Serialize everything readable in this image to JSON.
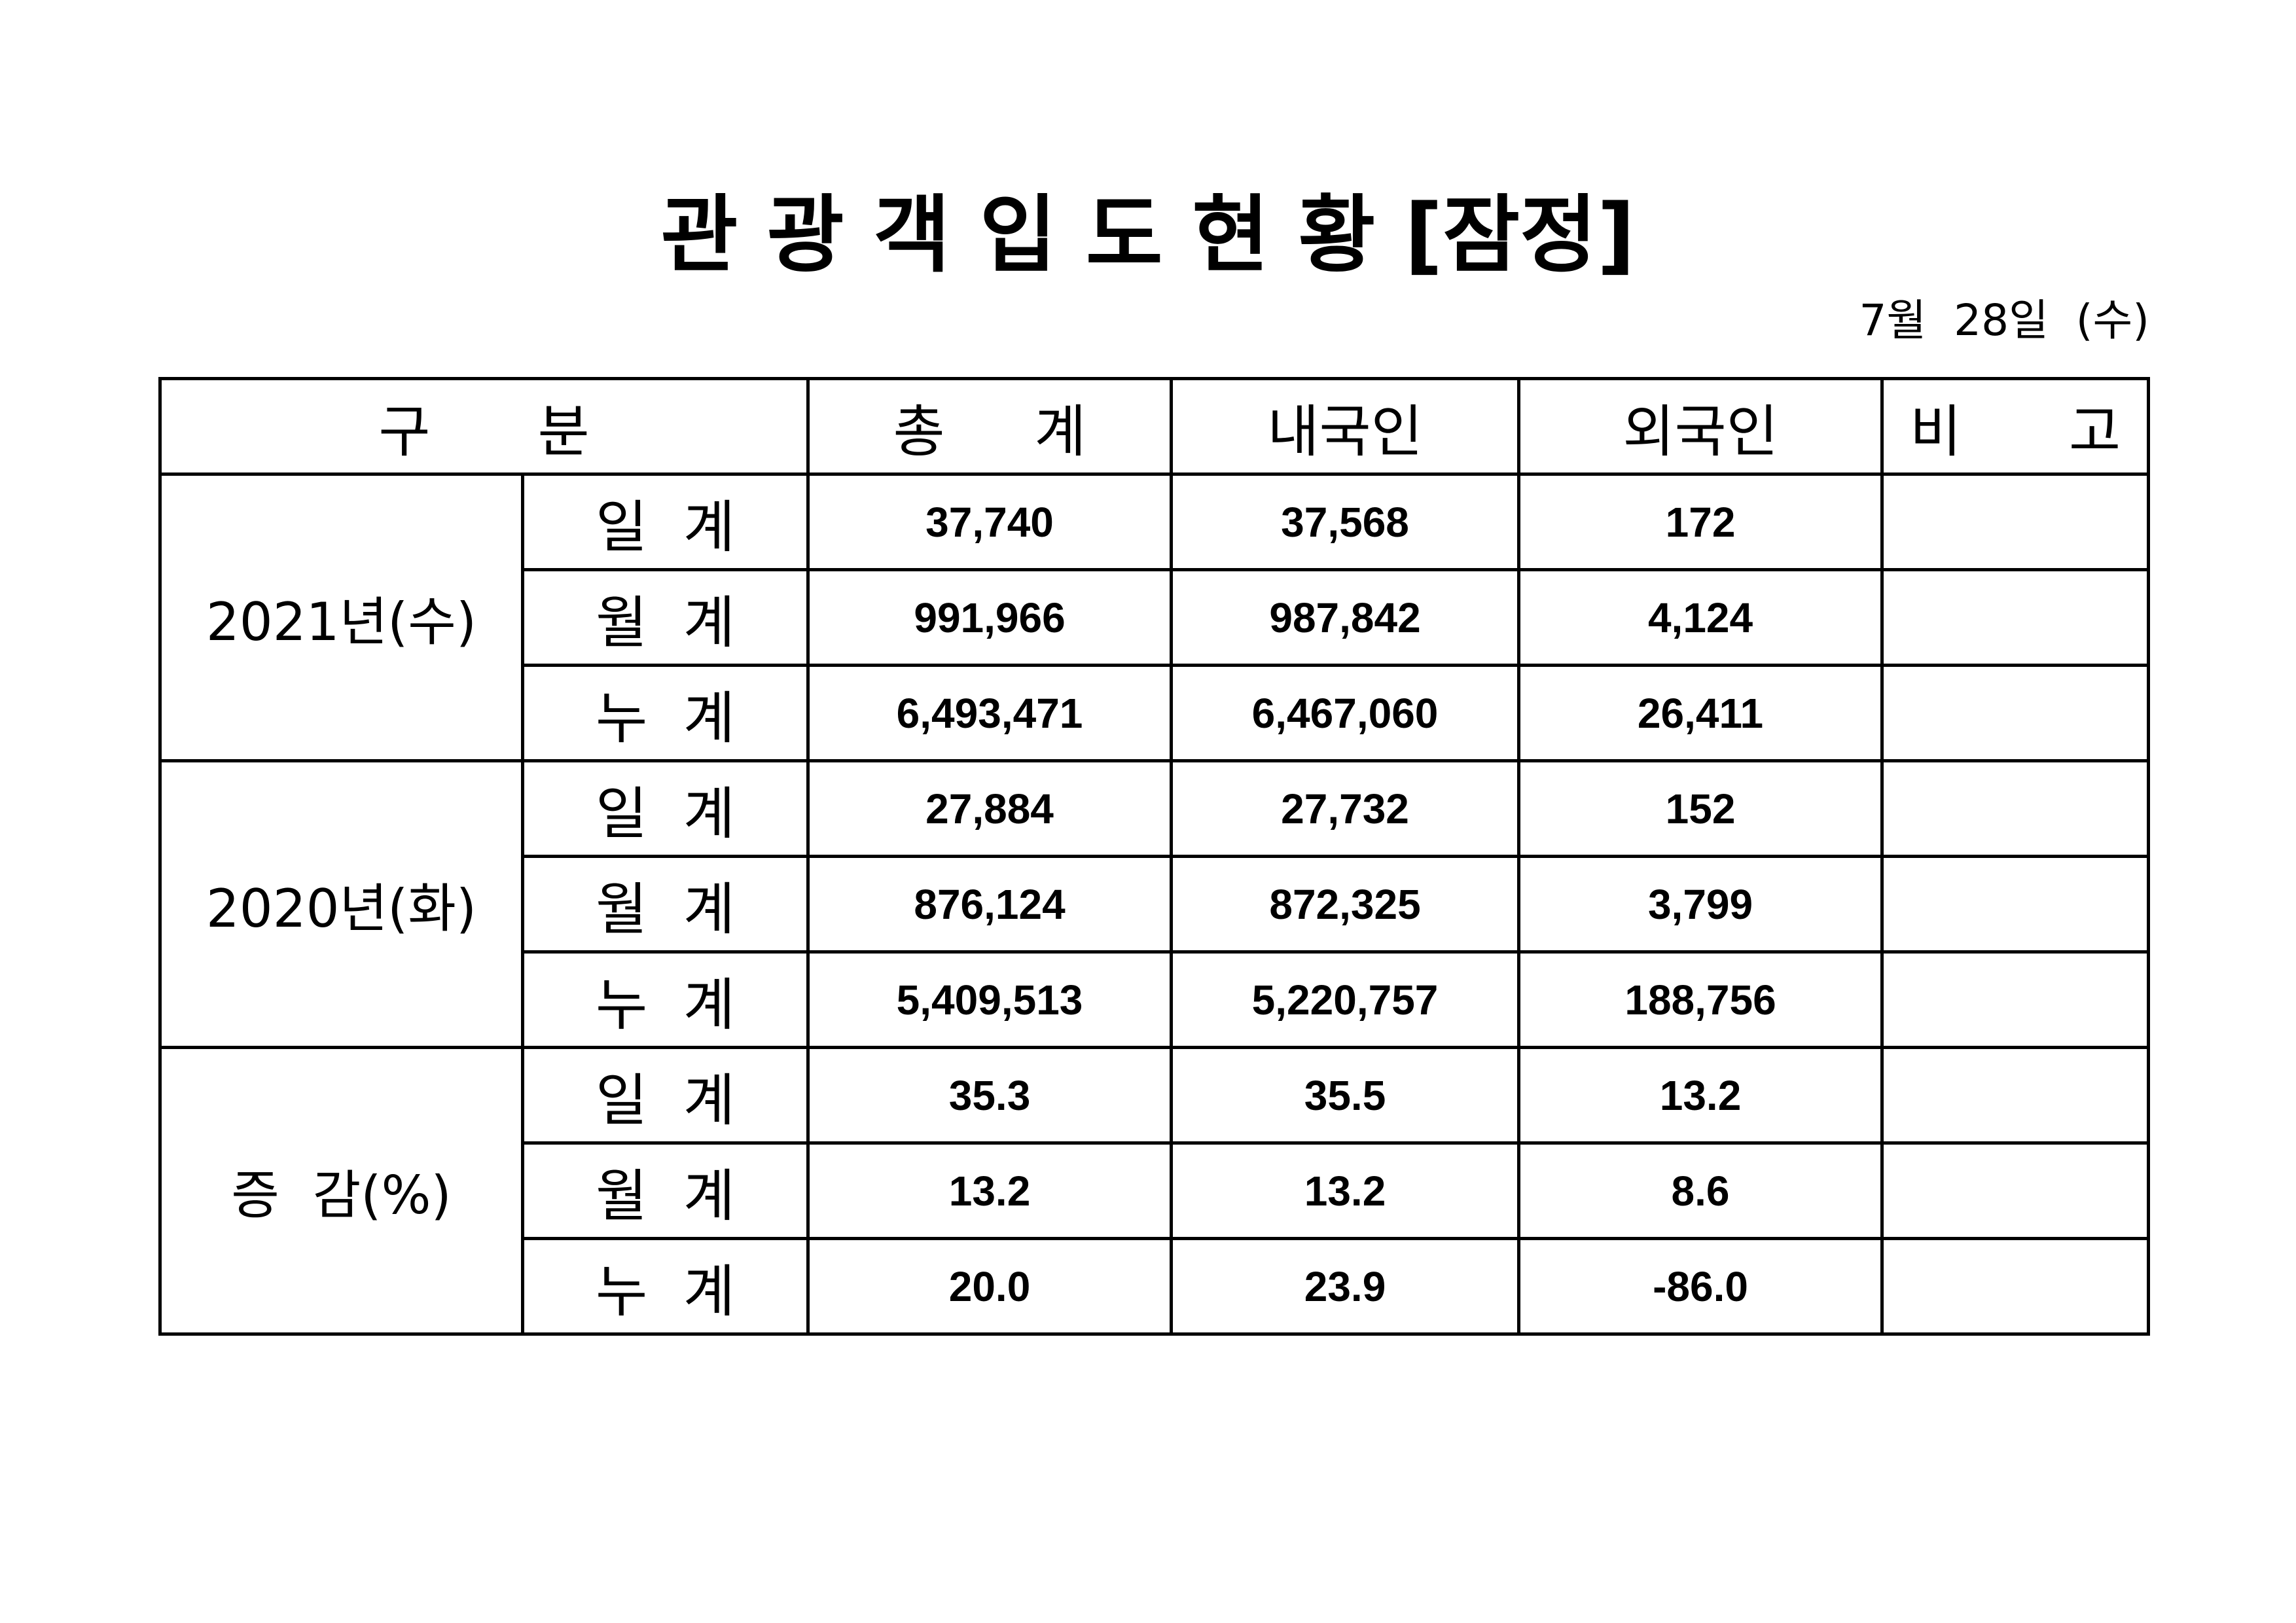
{
  "document": {
    "title": "관 광 객 입 도 현 황 [잠정]",
    "date": "7월  28일  (수)"
  },
  "table": {
    "headers": {
      "category": "구      분",
      "total": "총     계",
      "domestic": "내국인",
      "foreign": "외국인",
      "remarks": "비      고"
    },
    "groups": [
      {
        "label": "2021년(수)",
        "rows": [
          {
            "label": "일  계",
            "total": "37,740",
            "domestic": "37,568",
            "foreign": "172",
            "remarks": ""
          },
          {
            "label": "월  계",
            "total": "991,966",
            "domestic": "987,842",
            "foreign": "4,124",
            "remarks": ""
          },
          {
            "label": "누  계",
            "total": "6,493,471",
            "domestic": "6,467,060",
            "foreign": "26,411",
            "remarks": ""
          }
        ]
      },
      {
        "label": "2020년(화)",
        "rows": [
          {
            "label": "일  계",
            "total": "27,884",
            "domestic": "27,732",
            "foreign": "152",
            "remarks": ""
          },
          {
            "label": "월  계",
            "total": "876,124",
            "domestic": "872,325",
            "foreign": "3,799",
            "remarks": ""
          },
          {
            "label": "누  계",
            "total": "5,409,513",
            "domestic": "5,220,757",
            "foreign": "188,756",
            "remarks": ""
          }
        ]
      },
      {
        "label": "증  감(%)",
        "rows": [
          {
            "label": "일  계",
            "total": "35.3",
            "domestic": "35.5",
            "foreign": "13.2",
            "remarks": ""
          },
          {
            "label": "월  계",
            "total": "13.2",
            "domestic": "13.2",
            "foreign": "8.6",
            "remarks": ""
          },
          {
            "label": "누  계",
            "total": "20.0",
            "domestic": "23.9",
            "foreign": "-86.0",
            "remarks": ""
          }
        ]
      }
    ]
  }
}
